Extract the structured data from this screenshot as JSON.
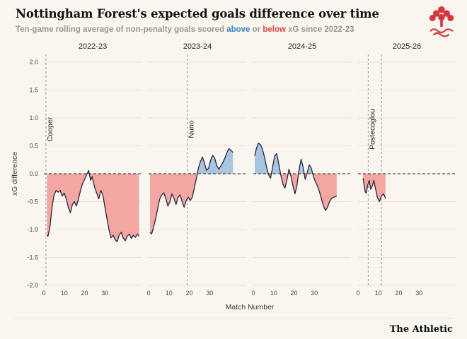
{
  "header": {
    "title": "Nottingham Forest's expected goals difference over time",
    "subtitle": {
      "prefix": "Ten-game rolling average of non-penalty goals scored ",
      "above_word": "above",
      "middle": " or ",
      "below_word": "below",
      "suffix": " xG since 2022-23"
    },
    "logo_name": "nottingham-forest-crest"
  },
  "colors": {
    "background": "#f9f6f0",
    "above_fill": "#a9c5df",
    "below_fill": "#f4a7a2",
    "line": "#26263e",
    "accent_blue": "#3f7fbe",
    "accent_red": "#e04343",
    "grid": "#e6e2d9",
    "zero_line": "#2a2a2a",
    "manager_line": "#9b968d",
    "crest_red": "#d4393f"
  },
  "footer": {
    "brand": "The Athletic"
  },
  "chart_data": {
    "type": "area",
    "title": "Nottingham Forest's expected goals difference over time",
    "xlabel": "Match Number",
    "ylabel": "xG difference",
    "ylim": [
      -2.0,
      2.0
    ],
    "yticks": [
      2.0,
      1.5,
      1.0,
      0.5,
      0.0,
      -0.5,
      -1.0,
      -1.5,
      -2.0
    ],
    "xticks": [
      0,
      10,
      20,
      30
    ],
    "x_range": [
      0,
      48
    ],
    "baseline": 0,
    "grid": true,
    "legend": "none",
    "panels": [
      {
        "season": "2022-23",
        "vlines": [
          {
            "x": 1.0,
            "label": "Cooper"
          }
        ],
        "points": [
          [
            1.5,
            -1.1
          ],
          [
            2,
            -1.12
          ],
          [
            3,
            -0.95
          ],
          [
            4,
            -0.6
          ],
          [
            5,
            -0.38
          ],
          [
            6,
            -0.3
          ],
          [
            7,
            -0.33
          ],
          [
            8,
            -0.3
          ],
          [
            9,
            -0.4
          ],
          [
            10,
            -0.35
          ],
          [
            11,
            -0.45
          ],
          [
            12,
            -0.6
          ],
          [
            13,
            -0.7
          ],
          [
            14,
            -0.55
          ],
          [
            15,
            -0.5
          ],
          [
            16,
            -0.58
          ],
          [
            17,
            -0.45
          ],
          [
            18,
            -0.3
          ],
          [
            19,
            -0.18
          ],
          [
            20,
            -0.1
          ],
          [
            21,
            -0.02
          ],
          [
            22,
            0.06
          ],
          [
            23,
            -0.12
          ],
          [
            23.7,
            -0.05
          ],
          [
            25,
            -0.25
          ],
          [
            26,
            -0.35
          ],
          [
            27,
            -0.45
          ],
          [
            28,
            -0.3
          ],
          [
            29,
            -0.38
          ],
          [
            30,
            -0.6
          ],
          [
            31,
            -0.8
          ],
          [
            32,
            -1.0
          ],
          [
            33,
            -1.15
          ],
          [
            34,
            -1.1
          ],
          [
            35,
            -1.18
          ],
          [
            36,
            -1.22
          ],
          [
            37,
            -1.1
          ],
          [
            38,
            -1.05
          ],
          [
            39,
            -1.15
          ],
          [
            40,
            -1.2
          ],
          [
            41,
            -1.12
          ],
          [
            42,
            -1.08
          ],
          [
            43,
            -1.16
          ],
          [
            44,
            -1.1
          ],
          [
            45,
            -1.14
          ],
          [
            46,
            -1.08
          ],
          [
            46.8,
            -1.12
          ]
        ]
      },
      {
        "season": "2023-24",
        "vlines": [
          {
            "x": 19,
            "label": "Nuno"
          }
        ],
        "points": [
          [
            0.7,
            -1.05
          ],
          [
            1.5,
            -1.08
          ],
          [
            2.5,
            -0.95
          ],
          [
            3.5,
            -0.8
          ],
          [
            4.5,
            -0.62
          ],
          [
            5.5,
            -0.45
          ],
          [
            6.5,
            -0.38
          ],
          [
            7.5,
            -0.34
          ],
          [
            8.5,
            -0.45
          ],
          [
            9.5,
            -0.58
          ],
          [
            10.5,
            -0.5
          ],
          [
            11.5,
            -0.36
          ],
          [
            12.5,
            -0.44
          ],
          [
            13.5,
            -0.55
          ],
          [
            14.5,
            -0.42
          ],
          [
            15.5,
            -0.38
          ],
          [
            16.5,
            -0.5
          ],
          [
            17.5,
            -0.6
          ],
          [
            18.5,
            -0.48
          ],
          [
            19.5,
            -0.42
          ],
          [
            20.5,
            -0.48
          ],
          [
            21.5,
            -0.42
          ],
          [
            22.5,
            -0.25
          ],
          [
            23.5,
            -0.08
          ],
          [
            24.5,
            0.1
          ],
          [
            25.5,
            0.22
          ],
          [
            26.5,
            0.3
          ],
          [
            27.5,
            0.18
          ],
          [
            28.5,
            0.06
          ],
          [
            29.5,
            0.1
          ],
          [
            30.5,
            0.24
          ],
          [
            31.5,
            0.33
          ],
          [
            32.5,
            0.28
          ],
          [
            33.5,
            0.15
          ],
          [
            34.5,
            0.08
          ],
          [
            35.5,
            0.14
          ],
          [
            36.5,
            0.2
          ],
          [
            37.5,
            0.28
          ],
          [
            38.5,
            0.38
          ],
          [
            39.5,
            0.45
          ],
          [
            40.5,
            0.42
          ],
          [
            41.5,
            0.38
          ]
        ]
      },
      {
        "season": "2024-25",
        "vlines": [],
        "points": [
          [
            0.7,
            0.32
          ],
          [
            1.5,
            0.45
          ],
          [
            2.5,
            0.55
          ],
          [
            3.5,
            0.52
          ],
          [
            4.5,
            0.44
          ],
          [
            5.5,
            0.3
          ],
          [
            6.5,
            0.12
          ],
          [
            7.5,
            -0.02
          ],
          [
            8.5,
            -0.08
          ],
          [
            9.5,
            0.12
          ],
          [
            10.5,
            0.32
          ],
          [
            11.5,
            0.36
          ],
          [
            12.5,
            0.18
          ],
          [
            13.5,
            -0.02
          ],
          [
            14.5,
            -0.18
          ],
          [
            15.5,
            -0.26
          ],
          [
            16.5,
            -0.12
          ],
          [
            17.5,
            0.08
          ],
          [
            18.5,
            -0.04
          ],
          [
            19.5,
            -0.22
          ],
          [
            20.5,
            -0.36
          ],
          [
            21.5,
            -0.2
          ],
          [
            22.5,
            0.08
          ],
          [
            23.5,
            0.26
          ],
          [
            24.5,
            0.12
          ],
          [
            25.5,
            -0.1
          ],
          [
            26.5,
            0.02
          ],
          [
            27.5,
            0.16
          ],
          [
            28.5,
            0.1
          ],
          [
            29.5,
            -0.04
          ],
          [
            30.5,
            -0.14
          ],
          [
            31.5,
            -0.22
          ],
          [
            32.5,
            -0.32
          ],
          [
            33.5,
            -0.45
          ],
          [
            34.5,
            -0.58
          ],
          [
            35.5,
            -0.66
          ],
          [
            36.5,
            -0.6
          ],
          [
            37.5,
            -0.5
          ],
          [
            38.5,
            -0.44
          ],
          [
            39.5,
            -0.42
          ],
          [
            41,
            -0.4
          ]
        ]
      },
      {
        "season": "2025-26",
        "vlines": [
          {
            "x": 5,
            "label": "Postecoglou"
          },
          {
            "x": 11.5,
            "label": ""
          }
        ],
        "points": [
          [
            2.5,
            -0.08
          ],
          [
            3,
            -0.2
          ],
          [
            3.5,
            -0.32
          ],
          [
            4,
            -0.35
          ],
          [
            4.8,
            -0.2
          ],
          [
            5.5,
            -0.12
          ],
          [
            6.2,
            -0.28
          ],
          [
            7,
            -0.22
          ],
          [
            7.8,
            -0.12
          ],
          [
            8.5,
            -0.25
          ],
          [
            9.5,
            -0.42
          ],
          [
            10.5,
            -0.5
          ],
          [
            11.5,
            -0.4
          ],
          [
            12.5,
            -0.36
          ],
          [
            13.5,
            -0.44
          ]
        ]
      }
    ]
  }
}
